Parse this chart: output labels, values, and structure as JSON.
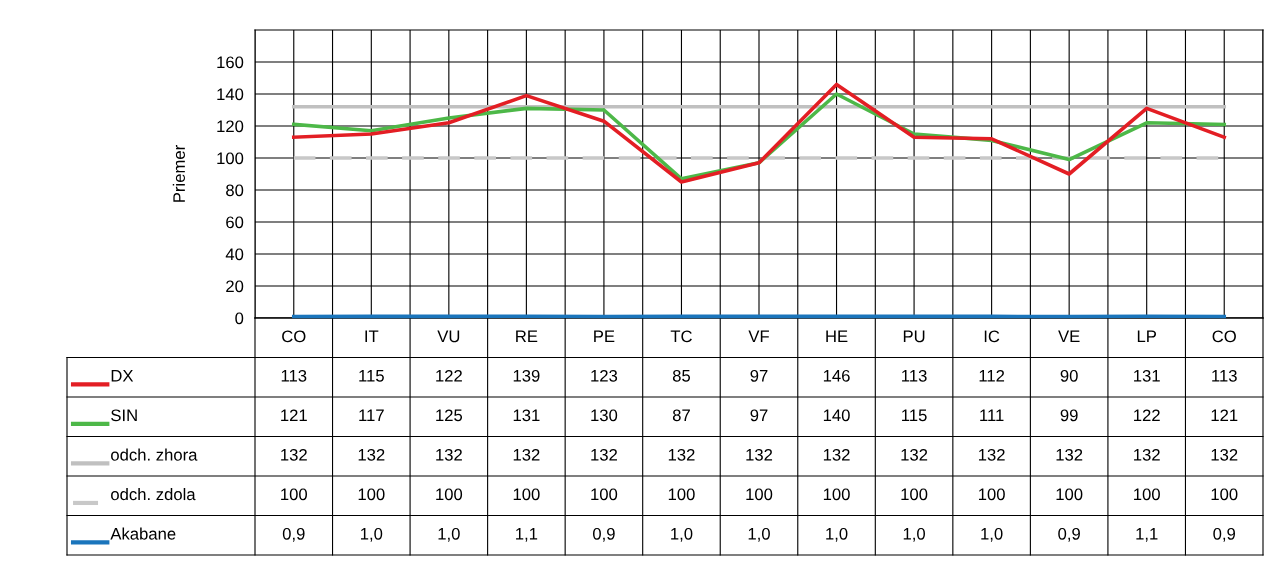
{
  "chart_data": {
    "type": "line",
    "ylabel": "Priemer",
    "categories": [
      "CO",
      "IT",
      "VU",
      "RE",
      "PE",
      "TC",
      "VF",
      "HE",
      "PU",
      "IC",
      "VE",
      "LP",
      "CO"
    ],
    "ylim": [
      0,
      180
    ],
    "yticks": [
      0,
      20,
      40,
      60,
      80,
      100,
      120,
      140,
      160
    ],
    "grid": true,
    "marker": "none",
    "legend": "bottom",
    "series": [
      {
        "name": "DX",
        "color": "#e31e24",
        "line_style": "solid",
        "values": [
          113,
          115,
          122,
          139,
          123,
          85,
          97,
          146,
          113,
          112,
          90,
          131,
          113
        ],
        "value_labels": [
          "113",
          "115",
          "122",
          "139",
          "123",
          "85",
          "97",
          "146",
          "113",
          "112",
          "90",
          "131",
          "113"
        ]
      },
      {
        "name": "SIN",
        "color": "#4db848",
        "line_style": "solid",
        "values": [
          121,
          117,
          125,
          131,
          130,
          87,
          97,
          140,
          115,
          111,
          99,
          122,
          121
        ],
        "value_labels": [
          "121",
          "117",
          "125",
          "131",
          "130",
          "87",
          "97",
          "140",
          "115",
          "111",
          "99",
          "122",
          "121"
        ]
      },
      {
        "name": "odch. zhora",
        "color": "#c0c0c0",
        "line_style": "solid",
        "values": [
          132,
          132,
          132,
          132,
          132,
          132,
          132,
          132,
          132,
          132,
          132,
          132,
          132
        ],
        "value_labels": [
          "132",
          "132",
          "132",
          "132",
          "132",
          "132",
          "132",
          "132",
          "132",
          "132",
          "132",
          "132",
          "132"
        ]
      },
      {
        "name": "odch. zdola",
        "color": "#c8c8c8",
        "line_style": "dashed",
        "values": [
          100,
          100,
          100,
          100,
          100,
          100,
          100,
          100,
          100,
          100,
          100,
          100,
          100
        ],
        "value_labels": [
          "100",
          "100",
          "100",
          "100",
          "100",
          "100",
          "100",
          "100",
          "100",
          "100",
          "100",
          "100",
          "100"
        ]
      },
      {
        "name": "Akabane",
        "color": "#1a75bc",
        "line_style": "solid",
        "values": [
          0.9,
          1.0,
          1.0,
          1.1,
          0.9,
          1.0,
          1.0,
          1.0,
          1.0,
          1.0,
          0.9,
          1.1,
          0.9
        ],
        "value_labels": [
          "0,9",
          "1,0",
          "1,0",
          "1,1",
          "0,9",
          "1,0",
          "1,0",
          "1,0",
          "1,0",
          "1,0",
          "0,9",
          "1,1",
          "0,9"
        ]
      }
    ]
  }
}
